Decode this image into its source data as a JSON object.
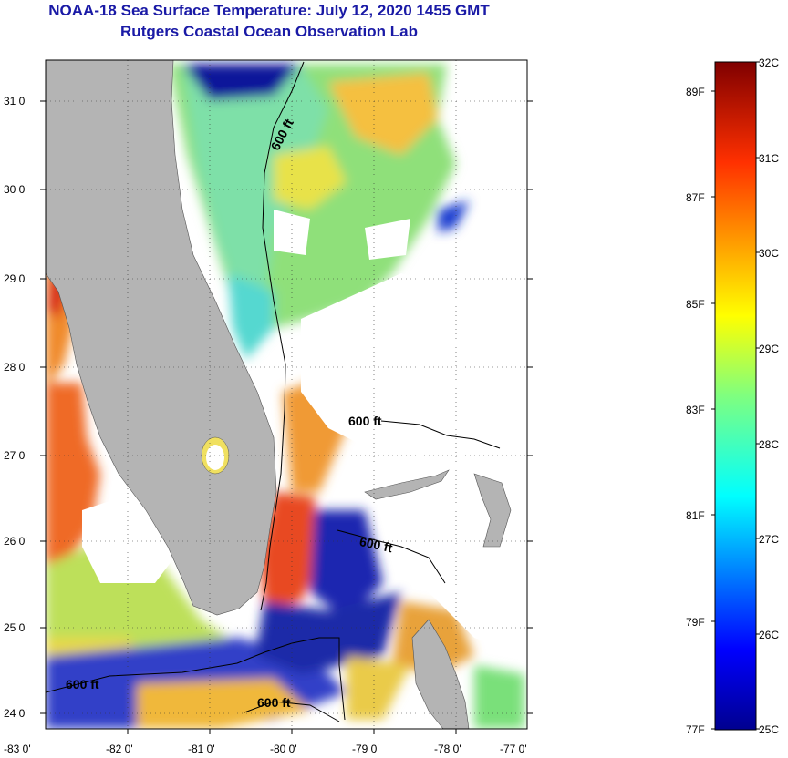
{
  "title": "NOAA-18 Sea Surface Temperature:  July 12, 2020 1455 GMT",
  "subtitle": "Rutgers Coastal Ocean Observation Lab",
  "map": {
    "lat_labels": [
      "31 0'",
      "30 0'",
      "29 0'",
      "28 0'",
      "27 0'",
      "26 0'",
      "25 0'",
      "24 0'"
    ],
    "lon_labels": [
      "-83 0'",
      "-82 0'",
      "-81 0'",
      "-80 0'",
      "-79 0'",
      "-78 0'",
      "-77 0'"
    ],
    "contour_labels": [
      "600 ft",
      "600 ft",
      "600 ft",
      "600 ft",
      "600 ft"
    ],
    "land_color": "#b4b4b4"
  },
  "colorbar": {
    "celsius_labels": [
      "32C",
      "31C",
      "30C",
      "29C",
      "28C",
      "27C",
      "26C",
      "25C"
    ],
    "fahrenheit_labels": [
      "89F",
      "87F",
      "85F",
      "83F",
      "81F",
      "79F",
      "77F"
    ]
  }
}
